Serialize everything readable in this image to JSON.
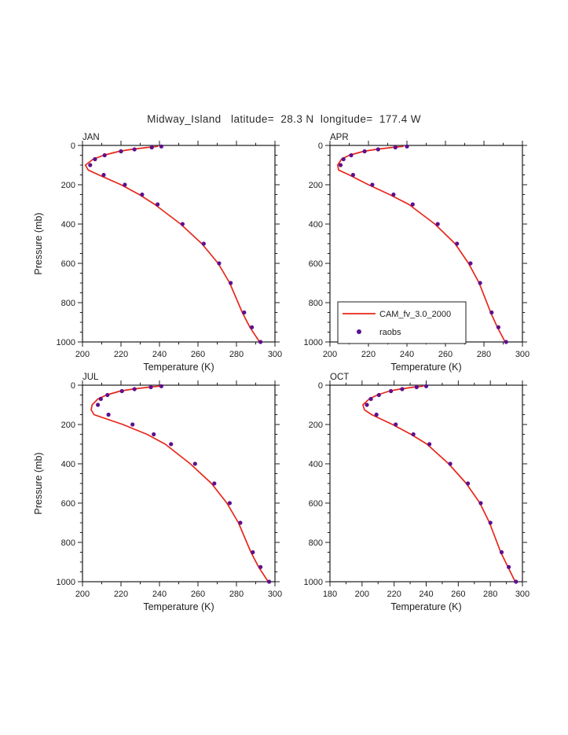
{
  "title": "Midway_Island   latitude=  28.3 N  longitude=  177.4 W",
  "legend": {
    "model_label": "CAM_fv_3.0_2000",
    "obs_label": "raobs"
  },
  "colors": {
    "model_line": "#e8261a",
    "obs_dot": "#5d108e",
    "axis": "#1c1c1c"
  },
  "axes": {
    "xlabel": "Temperature (K)",
    "ylabel": "Pressure (mb)",
    "ylim": [
      0,
      1000
    ],
    "yticks": [
      0,
      200,
      400,
      600,
      800,
      1000
    ],
    "y_minor_step": 50,
    "x_minor_step": 10,
    "grid": false
  },
  "chart_data": [
    {
      "type": "line",
      "panel": "JAN",
      "xlim": [
        200,
        300
      ],
      "xticks": [
        200,
        220,
        240,
        260,
        280,
        300
      ],
      "model": {
        "p": [
          5,
          10,
          20,
          30,
          50,
          70,
          100,
          125,
          150,
          200,
          250,
          300,
          400,
          500,
          600,
          700,
          850,
          925,
          1000
        ],
        "t": [
          239,
          234,
          225.5,
          219,
          211,
          205.5,
          201.5,
          203,
          208.5,
          220,
          229.5,
          237.5,
          251,
          262,
          270.5,
          276.5,
          283,
          287,
          292
        ]
      },
      "raobs": {
        "p": [
          5,
          10,
          20,
          30,
          50,
          70,
          100,
          150,
          200,
          250,
          300,
          400,
          500,
          600,
          700,
          850,
          925,
          1000
        ],
        "t": [
          241,
          236,
          227,
          220,
          211.5,
          206.5,
          204,
          211,
          222,
          231,
          239,
          252,
          263,
          271,
          277,
          284,
          288,
          292.5
        ]
      }
    },
    {
      "type": "line",
      "panel": "APR",
      "legend": true,
      "xlim": [
        200,
        300
      ],
      "xticks": [
        200,
        220,
        240,
        260,
        280,
        300
      ],
      "model": {
        "p": [
          5,
          10,
          20,
          30,
          50,
          70,
          100,
          125,
          150,
          200,
          250,
          300,
          400,
          500,
          600,
          700,
          850,
          925,
          1000
        ],
        "t": [
          238,
          232.5,
          224,
          217.5,
          210,
          206,
          204,
          204.5,
          210,
          220,
          231,
          241,
          254.5,
          265,
          272,
          277.5,
          283.5,
          287,
          291
        ]
      },
      "raobs": {
        "p": [
          5,
          10,
          20,
          30,
          50,
          70,
          100,
          150,
          200,
          250,
          300,
          400,
          500,
          600,
          700,
          850,
          925,
          1000
        ],
        "t": [
          240,
          234,
          225,
          218,
          211,
          207,
          205.5,
          212,
          222,
          233,
          243,
          256,
          266,
          273,
          278,
          284,
          287.5,
          291.5
        ]
      }
    },
    {
      "type": "line",
      "panel": "JUL",
      "xlim": [
        200,
        300
      ],
      "xticks": [
        200,
        220,
        240,
        260,
        280,
        300
      ],
      "model": {
        "p": [
          5,
          10,
          20,
          30,
          50,
          70,
          100,
          125,
          150,
          200,
          250,
          300,
          400,
          500,
          600,
          700,
          850,
          925,
          1000
        ],
        "t": [
          240,
          234.5,
          226,
          219.5,
          212.5,
          208,
          205,
          204.5,
          206,
          221,
          233.5,
          243,
          256,
          267,
          275,
          281,
          287.5,
          291.5,
          296.5
        ]
      },
      "raobs": {
        "p": [
          5,
          10,
          20,
          30,
          50,
          70,
          100,
          150,
          200,
          250,
          300,
          400,
          500,
          600,
          700,
          850,
          925,
          1000
        ],
        "t": [
          241,
          235.5,
          227,
          220.5,
          213,
          209.5,
          208,
          213.5,
          226,
          237,
          246,
          258.5,
          268.5,
          276.5,
          282,
          288.5,
          292.5,
          297
        ]
      }
    },
    {
      "type": "line",
      "panel": "OCT",
      "xlim": [
        180,
        300
      ],
      "xticks": [
        180,
        200,
        220,
        240,
        260,
        280,
        300
      ],
      "model": {
        "p": [
          5,
          10,
          20,
          30,
          50,
          70,
          100,
          125,
          150,
          200,
          250,
          300,
          400,
          500,
          600,
          700,
          850,
          925,
          1000
        ],
        "t": [
          238,
          232,
          223.5,
          217,
          209.5,
          204.5,
          200.5,
          201.5,
          206,
          219,
          230.5,
          240.5,
          254,
          265,
          273.5,
          279.5,
          286.5,
          291,
          295.5
        ]
      },
      "raobs": {
        "p": [
          5,
          10,
          20,
          30,
          50,
          70,
          100,
          150,
          200,
          250,
          300,
          400,
          500,
          600,
          700,
          850,
          925,
          1000
        ],
        "t": [
          240,
          234,
          225,
          218,
          210.5,
          205.5,
          203,
          209,
          221,
          232,
          242,
          255,
          266,
          274,
          280,
          287,
          291.5,
          296
        ]
      }
    }
  ]
}
